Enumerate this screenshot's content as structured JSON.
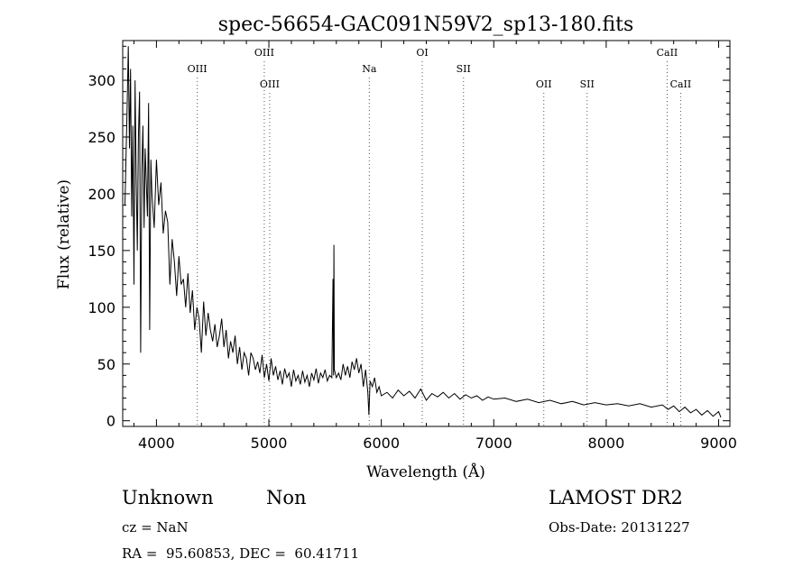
{
  "chart_data": {
    "type": "line",
    "title": "spec-56654-GAC091N59V2_sp13-180.fits",
    "xlabel": "Wavelength (Å)",
    "ylabel": "Flux (relative)",
    "xlim": [
      3700,
      9100
    ],
    "ylim": [
      -5,
      335
    ],
    "xticks": [
      4000,
      5000,
      6000,
      7000,
      8000,
      9000
    ],
    "yticks": [
      0,
      50,
      100,
      150,
      200,
      250,
      300
    ],
    "grid": false,
    "line_color": "#000000",
    "spectrum": [
      [
        3720,
        190
      ],
      [
        3740,
        280
      ],
      [
        3750,
        330
      ],
      [
        3760,
        240
      ],
      [
        3770,
        310
      ],
      [
        3780,
        180
      ],
      [
        3790,
        260
      ],
      [
        3800,
        120
      ],
      [
        3810,
        300
      ],
      [
        3820,
        210
      ],
      [
        3830,
        150
      ],
      [
        3840,
        250
      ],
      [
        3850,
        290
      ],
      [
        3860,
        60
      ],
      [
        3870,
        220
      ],
      [
        3880,
        260
      ],
      [
        3890,
        170
      ],
      [
        3900,
        240
      ],
      [
        3920,
        180
      ],
      [
        3930,
        280
      ],
      [
        3940,
        80
      ],
      [
        3950,
        230
      ],
      [
        3960,
        200
      ],
      [
        3980,
        170
      ],
      [
        4000,
        230
      ],
      [
        4020,
        190
      ],
      [
        4040,
        210
      ],
      [
        4060,
        165
      ],
      [
        4080,
        185
      ],
      [
        4100,
        175
      ],
      [
        4120,
        120
      ],
      [
        4140,
        160
      ],
      [
        4160,
        140
      ],
      [
        4180,
        110
      ],
      [
        4200,
        145
      ],
      [
        4220,
        120
      ],
      [
        4240,
        125
      ],
      [
        4260,
        100
      ],
      [
        4280,
        130
      ],
      [
        4300,
        95
      ],
      [
        4320,
        115
      ],
      [
        4340,
        80
      ],
      [
        4360,
        100
      ],
      [
        4380,
        90
      ],
      [
        4400,
        60
      ],
      [
        4420,
        105
      ],
      [
        4440,
        75
      ],
      [
        4460,
        95
      ],
      [
        4480,
        80
      ],
      [
        4500,
        70
      ],
      [
        4520,
        85
      ],
      [
        4540,
        65
      ],
      [
        4560,
        75
      ],
      [
        4580,
        90
      ],
      [
        4600,
        65
      ],
      [
        4620,
        80
      ],
      [
        4640,
        55
      ],
      [
        4660,
        70
      ],
      [
        4680,
        60
      ],
      [
        4700,
        75
      ],
      [
        4720,
        50
      ],
      [
        4740,
        65
      ],
      [
        4760,
        45
      ],
      [
        4780,
        60
      ],
      [
        4800,
        55
      ],
      [
        4820,
        40
      ],
      [
        4840,
        60
      ],
      [
        4860,
        55
      ],
      [
        4880,
        45
      ],
      [
        4900,
        52
      ],
      [
        4920,
        42
      ],
      [
        4940,
        58
      ],
      [
        4960,
        38
      ],
      [
        4980,
        50
      ],
      [
        5000,
        35
      ],
      [
        5020,
        55
      ],
      [
        5040,
        40
      ],
      [
        5060,
        48
      ],
      [
        5080,
        36
      ],
      [
        5100,
        44
      ],
      [
        5120,
        32
      ],
      [
        5140,
        46
      ],
      [
        5160,
        38
      ],
      [
        5180,
        42
      ],
      [
        5200,
        30
      ],
      [
        5220,
        45
      ],
      [
        5240,
        35
      ],
      [
        5260,
        40
      ],
      [
        5280,
        32
      ],
      [
        5300,
        44
      ],
      [
        5320,
        34
      ],
      [
        5340,
        40
      ],
      [
        5360,
        30
      ],
      [
        5380,
        42
      ],
      [
        5400,
        36
      ],
      [
        5420,
        46
      ],
      [
        5440,
        33
      ],
      [
        5460,
        42
      ],
      [
        5480,
        38
      ],
      [
        5500,
        45
      ],
      [
        5520,
        35
      ],
      [
        5540,
        40
      ],
      [
        5560,
        38
      ],
      [
        5570,
        125
      ],
      [
        5575,
        40
      ],
      [
        5578,
        155
      ],
      [
        5582,
        45
      ],
      [
        5600,
        38
      ],
      [
        5620,
        42
      ],
      [
        5640,
        36
      ],
      [
        5660,
        50
      ],
      [
        5680,
        40
      ],
      [
        5700,
        48
      ],
      [
        5720,
        38
      ],
      [
        5740,
        52
      ],
      [
        5760,
        45
      ],
      [
        5780,
        55
      ],
      [
        5800,
        42
      ],
      [
        5820,
        50
      ],
      [
        5840,
        30
      ],
      [
        5860,
        45
      ],
      [
        5880,
        25
      ],
      [
        5890,
        5
      ],
      [
        5900,
        35
      ],
      [
        5920,
        30
      ],
      [
        5940,
        38
      ],
      [
        5960,
        25
      ],
      [
        5980,
        30
      ],
      [
        6000,
        22
      ],
      [
        6050,
        25
      ],
      [
        6100,
        20
      ],
      [
        6150,
        27
      ],
      [
        6200,
        22
      ],
      [
        6250,
        26
      ],
      [
        6300,
        20
      ],
      [
        6350,
        28
      ],
      [
        6400,
        18
      ],
      [
        6450,
        24
      ],
      [
        6500,
        21
      ],
      [
        6550,
        25
      ],
      [
        6600,
        20
      ],
      [
        6650,
        24
      ],
      [
        6700,
        19
      ],
      [
        6750,
        23
      ],
      [
        6800,
        20
      ],
      [
        6850,
        22
      ],
      [
        6900,
        18
      ],
      [
        6950,
        21
      ],
      [
        7000,
        19
      ],
      [
        7100,
        20
      ],
      [
        7200,
        17
      ],
      [
        7300,
        19
      ],
      [
        7400,
        16
      ],
      [
        7500,
        18
      ],
      [
        7600,
        15
      ],
      [
        7700,
        17
      ],
      [
        7800,
        14
      ],
      [
        7900,
        16
      ],
      [
        8000,
        14
      ],
      [
        8100,
        15
      ],
      [
        8200,
        13
      ],
      [
        8300,
        15
      ],
      [
        8400,
        12
      ],
      [
        8500,
        14
      ],
      [
        8550,
        10
      ],
      [
        8600,
        13
      ],
      [
        8650,
        8
      ],
      [
        8700,
        12
      ],
      [
        8750,
        7
      ],
      [
        8800,
        10
      ],
      [
        8850,
        5
      ],
      [
        8900,
        9
      ],
      [
        8950,
        4
      ],
      [
        9000,
        8
      ],
      [
        9020,
        3
      ]
    ],
    "lines": [
      {
        "label": "OIII",
        "wavelength": 4363,
        "row": "mid"
      },
      {
        "label": "OIII",
        "wavelength": 4959,
        "row": "top"
      },
      {
        "label": "OIII",
        "wavelength": 5007,
        "row": "low"
      },
      {
        "label": "Na",
        "wavelength": 5893,
        "row": "mid"
      },
      {
        "label": "OI",
        "wavelength": 6364,
        "row": "top"
      },
      {
        "label": "SII",
        "wavelength": 6731,
        "row": "mid"
      },
      {
        "label": "OII",
        "wavelength": 7445,
        "row": "low"
      },
      {
        "label": "SII",
        "wavelength": 7830,
        "row": "low"
      },
      {
        "label": "CaII",
        "wavelength": 8542,
        "row": "top"
      },
      {
        "label": "CaII",
        "wavelength": 8662,
        "row": "low"
      }
    ]
  },
  "info": {
    "class": "Unknown",
    "subclass": "Non",
    "survey": "LAMOST DR2",
    "cz": "cz = NaN",
    "obs_date": "Obs-Date: 20131227",
    "coords": "RA =  95.60853, DEC =  60.41711"
  }
}
